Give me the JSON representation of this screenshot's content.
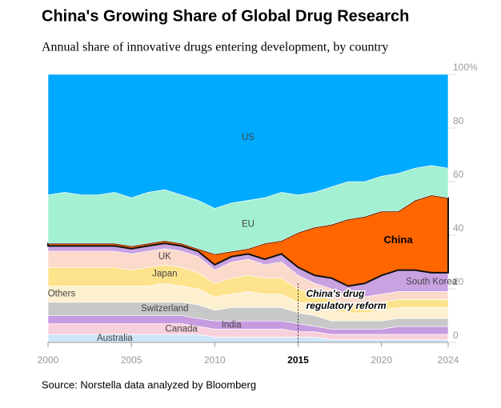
{
  "chart_data": {
    "type": "stacked_area",
    "title": "China's Growing Share of Global Drug Research",
    "subtitle": "Annual share of innovative drugs entering development, by country",
    "source": "Source: Norstella data analyzed by Bloomberg",
    "annotation": {
      "x": 2015,
      "lines": [
        "China's drug",
        "regulatory reform"
      ]
    },
    "x": [
      2000,
      2001,
      2002,
      2003,
      2004,
      2005,
      2006,
      2007,
      2008,
      2009,
      2010,
      2011,
      2012,
      2013,
      2014,
      2015,
      2016,
      2017,
      2018,
      2019,
      2020,
      2021,
      2022,
      2023,
      2024
    ],
    "xlim": [
      2000,
      2024
    ],
    "xticks": [
      2000,
      2005,
      2010,
      2015,
      2020,
      2024
    ],
    "ylim": [
      0,
      100
    ],
    "yticks": [
      0,
      20,
      40,
      60,
      80,
      {
        "value": 100,
        "label": "100%"
      }
    ],
    "series": [
      {
        "name": "Australia",
        "color": "#cfe6fa",
        "values": [
          3,
          3,
          3,
          3,
          3,
          3,
          3,
          3,
          3,
          3,
          2,
          2,
          2,
          2,
          2,
          2,
          2,
          1,
          1,
          1,
          1,
          1,
          1,
          1,
          1
        ]
      },
      {
        "name": "Canada",
        "color": "#f8d0dc",
        "values": [
          4,
          4,
          4,
          4,
          4,
          4,
          4,
          4,
          4,
          3,
          3,
          3,
          3,
          3,
          3,
          2,
          2,
          2,
          2,
          2,
          2,
          2,
          2,
          2,
          2
        ]
      },
      {
        "name": "India",
        "color": "#c79be0",
        "values": [
          3,
          3,
          3,
          3,
          3,
          3,
          3,
          3,
          3,
          3,
          3,
          3,
          3,
          3,
          3,
          3,
          2,
          2,
          2,
          2,
          2,
          3,
          3,
          3,
          3
        ]
      },
      {
        "name": "Switzerland",
        "color": "#c8c8c8",
        "values": [
          5,
          5,
          5,
          5,
          5,
          5,
          5,
          5,
          5,
          5,
          4,
          5,
          5,
          5,
          5,
          4,
          4,
          3,
          3,
          3,
          3,
          3,
          3,
          3,
          3
        ]
      },
      {
        "name": "Others",
        "color": "#fdf0d0",
        "values": [
          6,
          6,
          6,
          6,
          6,
          6,
          6,
          7,
          6,
          6,
          5,
          5,
          6,
          5,
          5,
          4,
          4,
          4,
          3,
          3,
          4,
          4,
          4,
          4,
          4
        ]
      },
      {
        "name": "Japan",
        "color": "#fde38c",
        "values": [
          7,
          7,
          7,
          7,
          7,
          6,
          7,
          7,
          7,
          6,
          5,
          6,
          6,
          6,
          6,
          5,
          4,
          4,
          3,
          3,
          3,
          3,
          3,
          3,
          3
        ]
      },
      {
        "name": "UK",
        "color": "#fbd9cb",
        "values": [
          6,
          6,
          6,
          6,
          6,
          6,
          6,
          6,
          6,
          6,
          5,
          6,
          6,
          5,
          6,
          5,
          4,
          4,
          3,
          3,
          3,
          3,
          3,
          3,
          3
        ]
      },
      {
        "name": "South Korea",
        "color": "#c9a2e2",
        "values": [
          2,
          2,
          2,
          2,
          2,
          2,
          2,
          2,
          2,
          2,
          2,
          2,
          2,
          2,
          3,
          3,
          3,
          4,
          4,
          5,
          7,
          8,
          8,
          7,
          7
        ]
      },
      {
        "name": "China",
        "color": "#ff6600",
        "values": [
          1,
          1,
          1,
          1,
          1,
          1,
          1,
          1,
          1,
          1,
          4,
          2,
          2,
          6,
          5,
          13,
          18,
          20,
          25,
          25,
          24,
          22,
          26,
          29,
          28
        ]
      },
      {
        "name": "EU",
        "color": "#a3f0d2",
        "values": [
          18,
          19,
          18,
          18,
          19,
          18,
          19,
          19,
          18,
          18,
          17,
          18,
          18,
          17,
          18,
          14,
          13,
          14,
          14,
          13,
          13,
          14,
          12,
          11,
          11
        ]
      },
      {
        "name": "US",
        "color": "#00aaff",
        "values": [
          45,
          44,
          45,
          45,
          44,
          46,
          44,
          43,
          45,
          47,
          50,
          48,
          47,
          46,
          44,
          45,
          44,
          42,
          40,
          40,
          38,
          37,
          35,
          34,
          35
        ]
      }
    ]
  }
}
